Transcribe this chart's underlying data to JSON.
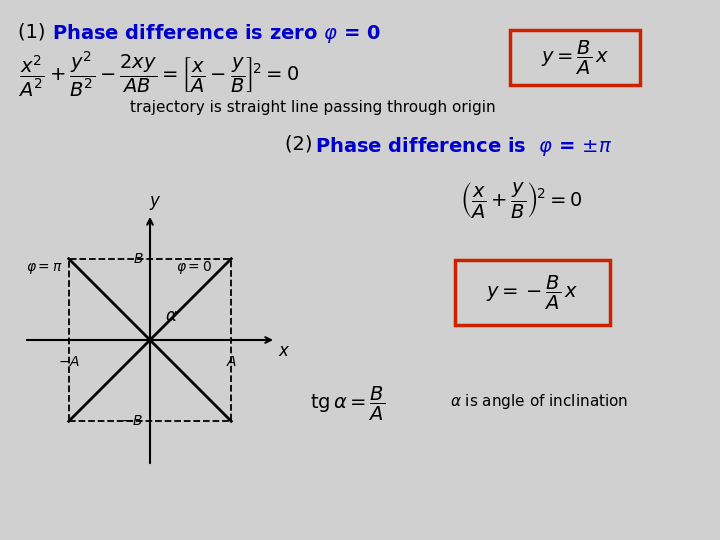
{
  "bg_color": "#d0d0d0",
  "title_color": "#0000cc",
  "text_color": "#000000",
  "box_color": "#cc2200",
  "fig_width": 7.2,
  "fig_height": 5.4,
  "dpi": 100
}
